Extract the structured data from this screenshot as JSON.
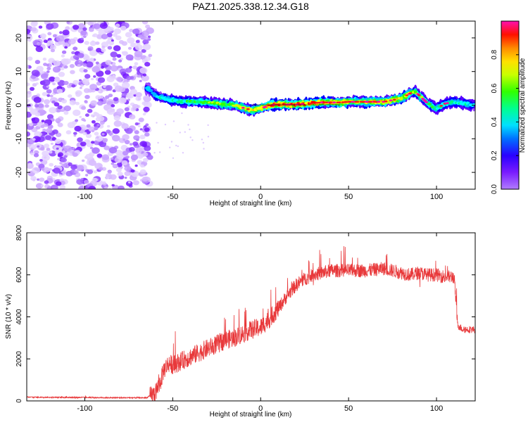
{
  "title": "PAZ1.2025.338.12.34.G18",
  "chart_data": [
    {
      "type": "heatmap",
      "name": "spectrogram",
      "xlabel": "Height of straight line (km)",
      "ylabel": "Frequency (Hz)",
      "xlim": [
        -133,
        122
      ],
      "ylim": [
        -25,
        25
      ],
      "xticks": [
        -100,
        -50,
        0,
        50,
        100
      ],
      "yticks": [
        -20,
        -10,
        0,
        10,
        20
      ],
      "noise_region_x": [
        -133,
        -65
      ],
      "ridge": {
        "x": [
          -65,
          -62,
          -60,
          -55,
          -50,
          -45,
          -40,
          -35,
          -30,
          -25,
          -20,
          -15,
          -10,
          -5,
          0,
          5,
          10,
          15,
          20,
          25,
          30,
          35,
          40,
          45,
          50,
          55,
          60,
          65,
          70,
          75,
          80,
          85,
          88,
          90,
          95,
          100,
          105,
          110,
          115,
          122
        ],
        "freq_hz": [
          5,
          4,
          3,
          2,
          1.5,
          1,
          1,
          1,
          0.8,
          0.5,
          0.3,
          0,
          -0.8,
          -1.5,
          -1,
          0,
          0.2,
          0.2,
          0.2,
          0.3,
          0.6,
          0.8,
          0.8,
          0.8,
          1,
          1,
          1,
          1,
          1,
          1.5,
          2,
          3.5,
          4,
          3,
          0.5,
          -1,
          0.5,
          1,
          0.5,
          0
        ],
        "amplitude": [
          0.3,
          0.3,
          0.35,
          0.4,
          0.45,
          0.45,
          0.5,
          0.5,
          0.55,
          0.55,
          0.6,
          0.6,
          0.7,
          0.7,
          0.75,
          0.8,
          0.85,
          0.85,
          0.85,
          0.85,
          0.8,
          0.8,
          0.75,
          0.7,
          0.7,
          0.7,
          0.7,
          0.7,
          0.75,
          0.75,
          0.7,
          0.65,
          0.6,
          0.55,
          0.5,
          0.45,
          0.45,
          0.45,
          0.4,
          0.35
        ]
      },
      "colorbar": {
        "label": "Normalized spectral amplitude",
        "range": [
          0,
          1
        ],
        "ticks": [
          "0.0",
          "0.2",
          "0.4",
          "0.6",
          "0.8"
        ],
        "colors": [
          "#9b4dff",
          "#5a00ff",
          "#0000ff",
          "#00b4ff",
          "#00ffff",
          "#00ff80",
          "#33ff00",
          "#ccff00",
          "#ffff00",
          "#ffaa00",
          "#ff0000",
          "#ff00a0"
        ]
      }
    },
    {
      "type": "line",
      "name": "snr",
      "color": "#e8383a",
      "xlabel": "Height of straight line (km)",
      "ylabel": "SNR (10 * v/v)",
      "xlim": [
        -133,
        122
      ],
      "ylim": [
        0,
        8000
      ],
      "xticks": [
        -100,
        -50,
        0,
        50,
        100
      ],
      "yticks": [
        0,
        2000,
        4000,
        6000,
        8000
      ],
      "x": [
        -133,
        -120,
        -100,
        -80,
        -65,
        -60,
        -57,
        -55,
        -52,
        -50,
        -45,
        -40,
        -35,
        -30,
        -25,
        -20,
        -15,
        -10,
        -5,
        0,
        5,
        10,
        15,
        20,
        25,
        30,
        40,
        50,
        60,
        70,
        80,
        85,
        90,
        95,
        100,
        105,
        110,
        111,
        112,
        115,
        122
      ],
      "y": [
        180,
        170,
        160,
        150,
        150,
        350,
        900,
        1500,
        1800,
        1700,
        1900,
        2100,
        2300,
        2500,
        2700,
        2900,
        3000,
        3200,
        3400,
        3500,
        3900,
        4400,
        5000,
        5500,
        5800,
        6000,
        6200,
        6200,
        6200,
        6300,
        6100,
        6000,
        6100,
        6000,
        6000,
        5900,
        5900,
        4800,
        3600,
        3400,
        3400
      ]
    }
  ]
}
